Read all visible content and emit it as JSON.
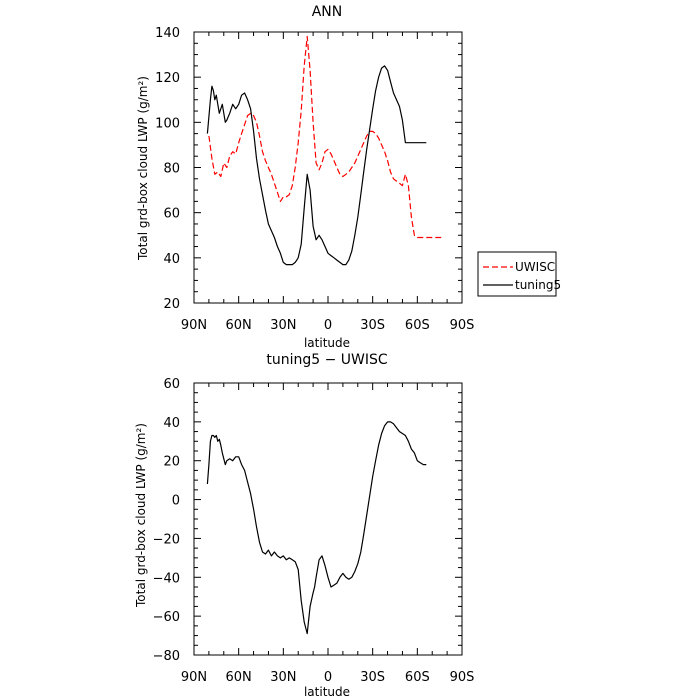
{
  "chart_data": [
    {
      "type": "line",
      "title": "ANN",
      "xlabel": "latitude",
      "ylabel": "Total grd-box cloud LWP (g/m²)",
      "xlim": [
        90,
        -90
      ],
      "ylim": [
        20,
        140
      ],
      "x_ticks": [
        {
          "value": 90,
          "label": "90N"
        },
        {
          "value": 60,
          "label": "60N"
        },
        {
          "value": 30,
          "label": "30N"
        },
        {
          "value": 0,
          "label": "0"
        },
        {
          "value": -30,
          "label": "30S"
        },
        {
          "value": -60,
          "label": "60S"
        },
        {
          "value": -90,
          "label": "90S"
        }
      ],
      "y_ticks": [
        20,
        40,
        60,
        80,
        100,
        120,
        140
      ],
      "legend_position": "right",
      "series": [
        {
          "name": "UWISC",
          "color": "#ff0000",
          "style": "dashed",
          "x": [
            80,
            78,
            76,
            74,
            72,
            70,
            68,
            66,
            64,
            62,
            60,
            58,
            56,
            54,
            52,
            50,
            48,
            46,
            44,
            42,
            40,
            38,
            36,
            34,
            32,
            30,
            28,
            26,
            24,
            22,
            20,
            18,
            16,
            14,
            12,
            10,
            8,
            6,
            4,
            2,
            0,
            -2,
            -4,
            -6,
            -8,
            -10,
            -12,
            -14,
            -16,
            -18,
            -20,
            -22,
            -24,
            -26,
            -28,
            -30,
            -32,
            -34,
            -36,
            -38,
            -40,
            -42,
            -44,
            -46,
            -48,
            -50,
            -52,
            -54,
            -56,
            -58,
            -60,
            -62,
            -64,
            -66,
            -68,
            -70,
            -72,
            -74,
            -76
          ],
          "y": [
            94,
            84,
            77,
            78,
            76,
            82,
            80,
            85,
            87,
            86,
            91,
            95,
            99,
            103,
            104,
            103,
            100,
            94,
            87,
            83,
            80,
            77,
            73,
            69,
            65,
            67,
            67,
            68,
            72,
            80,
            91,
            105,
            125,
            138,
            123,
            100,
            82,
            79,
            82,
            87,
            88,
            86,
            83,
            80,
            77,
            76,
            77,
            78,
            80,
            82,
            85,
            88,
            91,
            94,
            96,
            96,
            95,
            93,
            90,
            87,
            83,
            78,
            75,
            74,
            73,
            72,
            77,
            72,
            58,
            50,
            49,
            49,
            49,
            49,
            49,
            49,
            49,
            49,
            49
          ]
        },
        {
          "name": "tuning5",
          "color": "#000000",
          "style": "solid",
          "x": [
            81,
            79,
            78,
            77,
            76,
            75,
            74,
            73,
            72,
            71,
            70,
            69,
            68,
            66,
            64,
            62,
            60,
            58,
            56,
            54,
            52,
            50,
            48,
            46,
            44,
            42,
            40,
            38,
            36,
            34,
            32,
            30,
            28,
            26,
            24,
            22,
            20,
            18,
            16,
            14,
            12,
            10,
            8,
            6,
            4,
            2,
            0,
            -2,
            -4,
            -6,
            -8,
            -10,
            -12,
            -14,
            -16,
            -18,
            -20,
            -22,
            -24,
            -26,
            -28,
            -30,
            -32,
            -34,
            -36,
            -38,
            -40,
            -42,
            -44,
            -46,
            -48,
            -50,
            -52,
            -54,
            -56,
            -58,
            -60,
            -62,
            -64,
            -66
          ],
          "y": [
            95,
            110,
            116,
            114,
            110,
            112,
            108,
            104,
            106,
            108,
            104,
            100,
            101,
            104,
            108,
            106,
            108,
            112,
            113,
            110,
            106,
            96,
            84,
            75,
            68,
            61,
            55,
            52,
            49,
            45,
            42,
            38,
            37,
            37,
            37,
            38,
            40,
            46,
            62,
            77,
            70,
            54,
            48,
            50,
            48,
            45,
            42,
            41,
            40,
            39,
            38,
            37,
            37,
            39,
            43,
            50,
            58,
            68,
            78,
            88,
            97,
            106,
            114,
            120,
            124,
            125,
            123,
            118,
            113,
            110,
            107,
            101,
            91,
            91,
            91,
            91,
            91,
            91,
            91,
            91
          ]
        }
      ]
    },
    {
      "type": "line",
      "title": "tuning5 − UWISC",
      "xlabel": "latitude",
      "ylabel": "Total grd-box cloud LWP (g/m²)",
      "xlim": [
        90,
        -90
      ],
      "ylim": [
        -80,
        60
      ],
      "x_ticks": [
        {
          "value": 90,
          "label": "90N"
        },
        {
          "value": 60,
          "label": "60N"
        },
        {
          "value": 30,
          "label": "30N"
        },
        {
          "value": 0,
          "label": "0"
        },
        {
          "value": -30,
          "label": "30S"
        },
        {
          "value": -60,
          "label": "60S"
        },
        {
          "value": -90,
          "label": "90S"
        }
      ],
      "y_ticks": [
        -80,
        -60,
        -40,
        -20,
        0,
        20,
        40,
        60
      ],
      "series": [
        {
          "color": "#000000",
          "style": "solid",
          "x": [
            81,
            80,
            79,
            78,
            77,
            76,
            75,
            74,
            73,
            72,
            71,
            70,
            69,
            68,
            66,
            64,
            62,
            60,
            58,
            56,
            54,
            52,
            50,
            48,
            46,
            44,
            42,
            40,
            38,
            36,
            34,
            32,
            30,
            28,
            26,
            24,
            22,
            20,
            18,
            16,
            14,
            12,
            10,
            9,
            8,
            6,
            4,
            2,
            0,
            -2,
            -4,
            -6,
            -8,
            -10,
            -12,
            -14,
            -16,
            -18,
            -20,
            -22,
            -24,
            -26,
            -28,
            -30,
            -32,
            -34,
            -36,
            -38,
            -40,
            -42,
            -44,
            -46,
            -48,
            -50,
            -52,
            -54,
            -56,
            -58,
            -60,
            -62,
            -64,
            -66
          ],
          "y": [
            8,
            18,
            30,
            33,
            33,
            32,
            33,
            30,
            31,
            28,
            24,
            21,
            18,
            20,
            21,
            20,
            22,
            22,
            18,
            15,
            9,
            3,
            -5,
            -14,
            -22,
            -27,
            -28,
            -26,
            -29,
            -27,
            -29,
            -30,
            -29,
            -31,
            -30,
            -31,
            -32,
            -36,
            -52,
            -63,
            -69,
            -55,
            -48,
            -45,
            -40,
            -31,
            -29,
            -34,
            -40,
            -45,
            -44,
            -43,
            -40,
            -38,
            -40,
            -41,
            -40,
            -37,
            -33,
            -27,
            -18,
            -8,
            2,
            12,
            20,
            28,
            34,
            38,
            40,
            40,
            39,
            37,
            35,
            34,
            33,
            30,
            26,
            24,
            20,
            19,
            18,
            18
          ]
        }
      ]
    }
  ]
}
